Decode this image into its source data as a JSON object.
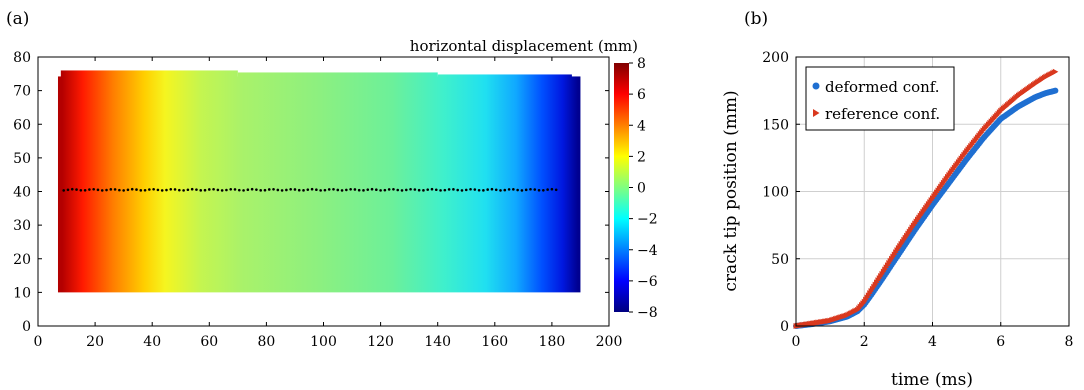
{
  "chart_data": [
    {
      "panel_label": "(a)",
      "type": "heatmap",
      "title": "",
      "xlabel": "",
      "ylabel": "",
      "xlim": [
        0,
        200
      ],
      "ylim": [
        0,
        80
      ],
      "xticks": [
        "0",
        "20",
        "40",
        "60",
        "80",
        "100",
        "120",
        "140",
        "160",
        "180",
        "200"
      ],
      "yticks": [
        "0",
        "10",
        "20",
        "30",
        "40",
        "50",
        "60",
        "70",
        "80"
      ],
      "field_extent": {
        "x": [
          7,
          190
        ],
        "y": [
          10,
          76
        ]
      },
      "colorbar": {
        "title": "horizontal displacement (mm)",
        "range": [
          -8,
          8
        ],
        "ticks": [
          "8",
          "6",
          "4",
          "2",
          "0",
          "−2",
          "−4",
          "−6",
          "−8"
        ],
        "colormap": "jet"
      },
      "crack_path": {
        "y": 40.5,
        "x_start": 9,
        "x_end": 182,
        "color": "#000000"
      }
    },
    {
      "panel_label": "(b)",
      "type": "scatter",
      "title": "",
      "xlabel": "time (ms)",
      "ylabel": "crack tip position (mm)",
      "xlim": [
        0,
        8
      ],
      "ylim": [
        0,
        200
      ],
      "xticks": [
        "0",
        "2",
        "4",
        "6",
        "8"
      ],
      "yticks": [
        "0",
        "50",
        "100",
        "150",
        "200"
      ],
      "grid": true,
      "legend_position": "top-left",
      "series": [
        {
          "name": "deformed conf.",
          "color": "#1f6fd1",
          "marker": "circle",
          "x": [
            0,
            0.5,
            1.0,
            1.5,
            1.8,
            2.0,
            2.2,
            2.5,
            3.0,
            3.5,
            4.0,
            4.5,
            5.0,
            5.5,
            6.0,
            6.5,
            7.0,
            7.3,
            7.6
          ],
          "y": [
            0,
            1.5,
            3.5,
            7,
            11,
            16,
            23,
            34,
            53,
            72,
            90,
            107,
            124,
            140,
            154,
            163,
            170,
            173,
            175
          ]
        },
        {
          "name": "reference conf.",
          "color": "#d9381e",
          "marker": "triangle-right",
          "x": [
            0,
            0.5,
            1.0,
            1.5,
            1.8,
            2.0,
            2.2,
            2.5,
            3.0,
            3.5,
            4.0,
            4.5,
            5.0,
            5.5,
            6.0,
            6.5,
            7.0,
            7.3,
            7.6
          ],
          "y": [
            0,
            2,
            4,
            8,
            12,
            18,
            26,
            38,
            58,
            77,
            95,
            113,
            130,
            146,
            160,
            171,
            180,
            185,
            189
          ]
        }
      ]
    }
  ]
}
